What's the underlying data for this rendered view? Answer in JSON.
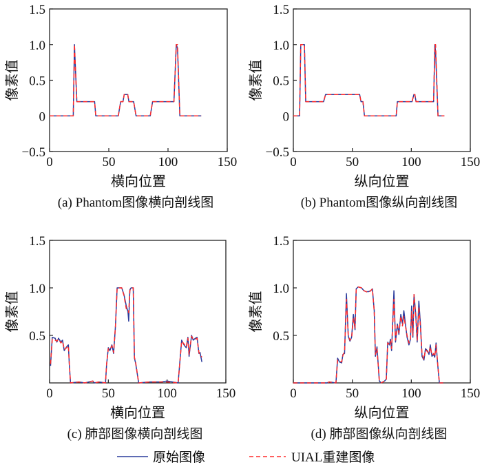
{
  "legend": {
    "items": [
      {
        "label": "原始图像",
        "color": "#2a3b9c",
        "style": "solid"
      },
      {
        "label": "UIAL重建图像",
        "color": "#ff2a2a",
        "style": "dashed"
      }
    ]
  },
  "chart_data": [
    {
      "type": "line",
      "caption": "(a) Phantom图像横向剖线图",
      "xlabel": "横向位置",
      "ylabel": "像素值",
      "xlim": [
        0,
        150
      ],
      "ylim": [
        -0.5,
        1.5
      ],
      "xticks": [
        0,
        50,
        100,
        150
      ],
      "xtick_labels": [
        "0",
        "50",
        "100",
        "150"
      ],
      "yticks": [
        -0.5,
        0,
        0.5,
        1.0,
        1.5
      ],
      "ytick_labels": [
        "−0.5",
        "0",
        "0.5",
        "1.0",
        "1.5"
      ],
      "grid": false,
      "series": [
        {
          "name": "原始图像",
          "x": [
            0,
            20,
            21,
            23,
            38,
            39,
            58,
            60,
            62,
            63,
            66,
            67,
            71,
            73,
            85,
            87,
            105,
            107,
            108,
            110,
            128
          ],
          "y": [
            0,
            0,
            1.0,
            0.2,
            0.2,
            0,
            0,
            0.2,
            0.2,
            0.3,
            0.3,
            0.2,
            0.2,
            0,
            0,
            0.2,
            0.2,
            1.0,
            0.95,
            0,
            0
          ]
        },
        {
          "name": "UIAL重建图像",
          "x": [
            0,
            20,
            21,
            23,
            38,
            39,
            58,
            60,
            62,
            63,
            66,
            67,
            71,
            73,
            85,
            87,
            105,
            107,
            108,
            110,
            128
          ],
          "y": [
            0,
            0,
            1.0,
            0.2,
            0.2,
            0,
            0,
            0.2,
            0.2,
            0.3,
            0.3,
            0.2,
            0.2,
            0,
            0,
            0.2,
            0.2,
            1.0,
            1.0,
            0,
            0
          ]
        }
      ]
    },
    {
      "type": "line",
      "caption": "(b) Phantom图像纵向剖线图",
      "xlabel": "纵向位置",
      "ylabel": "像素值",
      "xlim": [
        0,
        150
      ],
      "ylim": [
        -0.5,
        1.5
      ],
      "xticks": [
        0,
        50,
        100,
        150
      ],
      "xtick_labels": [
        "0",
        "50",
        "100",
        "150"
      ],
      "yticks": [
        -0.5,
        0,
        0.5,
        1.0,
        1.5
      ],
      "ytick_labels": [
        "−0.5",
        "0",
        "0.5",
        "1.0",
        "1.5"
      ],
      "grid": false,
      "series": [
        {
          "name": "原始图像",
          "x": [
            0,
            5.3,
            6.3,
            9.4,
            10.5,
            25.7,
            27.3,
            56.2,
            57.4,
            59,
            60.3,
            87.2,
            88.2,
            100.6,
            102.2,
            103,
            104,
            118.9,
            120,
            120.6,
            122.6,
            128
          ],
          "y": [
            0,
            0,
            1.0,
            1.0,
            0.2,
            0.2,
            0.3,
            0.3,
            0.2,
            0.2,
            0,
            0,
            0.2,
            0.2,
            0.3,
            0.3,
            0.2,
            0.2,
            1.0,
            0.9,
            0,
            0
          ]
        },
        {
          "name": "UIAL重建图像",
          "x": [
            0,
            5.3,
            6.3,
            9.4,
            10.5,
            25.7,
            27.3,
            56.2,
            57.4,
            59,
            60.3,
            87.2,
            88.2,
            100.6,
            102.2,
            103,
            104,
            118.9,
            120,
            120.6,
            122.6,
            128
          ],
          "y": [
            0,
            0,
            1.0,
            1.0,
            0.2,
            0.2,
            0.3,
            0.3,
            0.2,
            0.2,
            0,
            0,
            0.2,
            0.2,
            0.3,
            0.3,
            0.2,
            0.2,
            1.0,
            1.0,
            0,
            0
          ]
        }
      ]
    },
    {
      "type": "line",
      "caption": "(c) 肺部图像横向剖线图",
      "xlabel": "横向位置",
      "ylabel": "像素值",
      "xlim": [
        0,
        150
      ],
      "ylim": [
        0,
        1.5
      ],
      "xticks": [
        0,
        50,
        100,
        150
      ],
      "xtick_labels": [
        "0",
        "50",
        "100",
        "150"
      ],
      "yticks": [
        0.5,
        1.0,
        1.5
      ],
      "ytick_labels": [
        "0.5",
        "1.0",
        "1.5"
      ],
      "grid": false,
      "series": [
        {
          "name": "原始图像",
          "x": [
            0.8,
            2.3,
            4.7,
            6.2,
            7.6,
            9.6,
            11,
            12.5,
            14.5,
            16,
            16.8,
            17.8,
            25,
            30,
            36.8,
            38,
            42,
            47.6,
            48.5,
            50,
            51.3,
            53,
            54.5,
            56.1,
            57.5,
            61.4,
            63.3,
            65.3,
            66.7,
            67.3,
            68.3,
            69.3,
            71.2,
            72.2,
            73.2,
            75.8,
            85,
            95,
            100,
            109.4,
            112.4,
            114.4,
            116.3,
            117.7,
            118.7,
            120.8,
            122.2,
            124.1,
            125.5,
            127.1,
            128,
            129.6
          ],
          "y": [
            0.18,
            0.48,
            0.47,
            0.43,
            0.47,
            0.43,
            0.45,
            0.34,
            0.38,
            0.4,
            0.19,
            0,
            0.01,
            0,
            0.02,
            0,
            0.01,
            0,
            0.19,
            0.37,
            0.34,
            0.4,
            0.31,
            0.6,
            1.0,
            1.0,
            0.93,
            0.81,
            0.75,
            0.65,
            0.98,
            1.0,
            1.0,
            0.26,
            0.21,
            0,
            0.01,
            0.01,
            0.02,
            0,
            0.45,
            0.4,
            0.37,
            0.48,
            0.28,
            0.5,
            0.45,
            0.47,
            0.48,
            0.31,
            0.32,
            0.22
          ]
        },
        {
          "name": "UIAL重建图像",
          "x": [
            0.8,
            2.3,
            4.7,
            6.2,
            7.6,
            9.6,
            11,
            12.5,
            14.5,
            16,
            16.8,
            17.8,
            25,
            30,
            36.8,
            38,
            42,
            47.6,
            48.5,
            50,
            51.3,
            53,
            54.5,
            56.1,
            57.5,
            61.4,
            63.3,
            65.3,
            66.7,
            67.3,
            68.3,
            69.3,
            71.2,
            72.2,
            73.2,
            75.8,
            85,
            95,
            100,
            109.4,
            112.4,
            114.4,
            116.3,
            117.7,
            118.7,
            120.8,
            122.2,
            124.1,
            125.5,
            127.1,
            128,
            129.6
          ],
          "y": [
            0.2,
            0.46,
            0.45,
            0.44,
            0.46,
            0.42,
            0.44,
            0.35,
            0.37,
            0.39,
            0.2,
            0,
            0.01,
            0,
            0.02,
            0,
            0.01,
            0,
            0.2,
            0.36,
            0.35,
            0.39,
            0.32,
            0.6,
            1.0,
            1.0,
            0.92,
            0.78,
            0.77,
            0.74,
            0.97,
            1.0,
            1.0,
            0.27,
            0.22,
            0,
            0.01,
            0.01,
            0.01,
            0,
            0.44,
            0.41,
            0.38,
            0.47,
            0.3,
            0.49,
            0.46,
            0.46,
            0.47,
            0.32,
            0.3,
            0.27
          ]
        }
      ]
    },
    {
      "type": "line",
      "caption": "(d) 肺部图像纵向剖线图",
      "xlabel": "纵向位置",
      "ylabel": "像素值",
      "xlim": [
        0,
        150
      ],
      "ylim": [
        0,
        1.5
      ],
      "xticks": [
        0,
        50,
        100,
        150
      ],
      "xtick_labels": [
        "0",
        "50",
        "100",
        "150"
      ],
      "yticks": [
        0.5,
        1.0,
        1.5
      ],
      "ytick_labels": [
        "0.5",
        "1.0",
        "1.5"
      ],
      "grid": false,
      "series": [
        {
          "name": "原始图像",
          "x": [
            0,
            28.6,
            30.5,
            36.1,
            37.5,
            39.1,
            41,
            42,
            43.4,
            45,
            46.6,
            48,
            49.4,
            50.9,
            52.3,
            53.3,
            54.9,
            57.8,
            59.8,
            61.7,
            63.7,
            65.6,
            67,
            68.6,
            69.6,
            70.9,
            72.9,
            74.5,
            77.4,
            78.8,
            80,
            81.4,
            82.3,
            83.3,
            85.3,
            86.6,
            88.2,
            89.5,
            91.1,
            92.5,
            93.7,
            95,
            96.4,
            98,
            99.3,
            100.3,
            101.3,
            102.3,
            103.8,
            105,
            106.4,
            107.7,
            109.1,
            110.7,
            112,
            113.6,
            115,
            116.1,
            117.5,
            118.9,
            119.9,
            121,
            122.4,
            123.8,
            127
          ],
          "y": [
            0,
            0,
            0.01,
            0,
            0.26,
            0.22,
            0.21,
            0.3,
            0.31,
            0.94,
            0.49,
            0.44,
            0.48,
            0.72,
            0.56,
            0.99,
            1.01,
            1.0,
            0.97,
            0.96,
            0.96,
            0.97,
            0.99,
            0.76,
            0.28,
            0.38,
            0.02,
            0,
            0.02,
            0.04,
            0.43,
            0.4,
            0.46,
            0.34,
            0.97,
            0.43,
            0.62,
            0.51,
            0.72,
            0.62,
            0.76,
            0.62,
            0.48,
            0.4,
            0.46,
            0.81,
            0.48,
            0.93,
            0.72,
            0.43,
            0.86,
            0.63,
            0.28,
            0.24,
            0.36,
            0.34,
            0.3,
            0.4,
            0.28,
            0.3,
            0.27,
            0.42,
            0.19,
            0,
            0
          ]
        },
        {
          "name": "UIAL重建图像",
          "x": [
            0,
            28.6,
            30.5,
            36.1,
            37.5,
            39.1,
            41,
            42,
            43.4,
            45,
            46.6,
            48,
            49.4,
            50.9,
            52.3,
            53.3,
            54.9,
            57.8,
            59.8,
            61.7,
            63.7,
            65.6,
            67,
            68.6,
            69.6,
            70.9,
            72.9,
            74.5,
            77.4,
            78.8,
            80,
            81.4,
            82.3,
            83.3,
            85.3,
            86.6,
            88.2,
            89.5,
            91.1,
            92.5,
            93.7,
            95,
            96.4,
            98,
            99.3,
            100.3,
            101.3,
            102.3,
            103.8,
            105,
            106.4,
            107.7,
            109.1,
            110.7,
            112,
            113.6,
            115,
            116.1,
            117.5,
            118.9,
            119.9,
            121,
            122.4,
            123.8,
            127
          ],
          "y": [
            0,
            0,
            0.01,
            0,
            0.24,
            0.23,
            0.22,
            0.29,
            0.33,
            0.88,
            0.5,
            0.45,
            0.47,
            0.68,
            0.58,
            0.98,
            1.01,
            1.0,
            0.97,
            0.96,
            0.95,
            0.97,
            0.99,
            0.75,
            0.3,
            0.36,
            0.02,
            0,
            0.02,
            0.03,
            0.42,
            0.41,
            0.44,
            0.36,
            0.88,
            0.45,
            0.6,
            0.53,
            0.7,
            0.6,
            0.7,
            0.6,
            0.5,
            0.42,
            0.45,
            0.75,
            0.5,
            0.93,
            0.7,
            0.45,
            0.8,
            0.6,
            0.3,
            0.25,
            0.35,
            0.33,
            0.31,
            0.38,
            0.29,
            0.31,
            0.28,
            0.4,
            0.2,
            0,
            0
          ]
        }
      ]
    }
  ]
}
